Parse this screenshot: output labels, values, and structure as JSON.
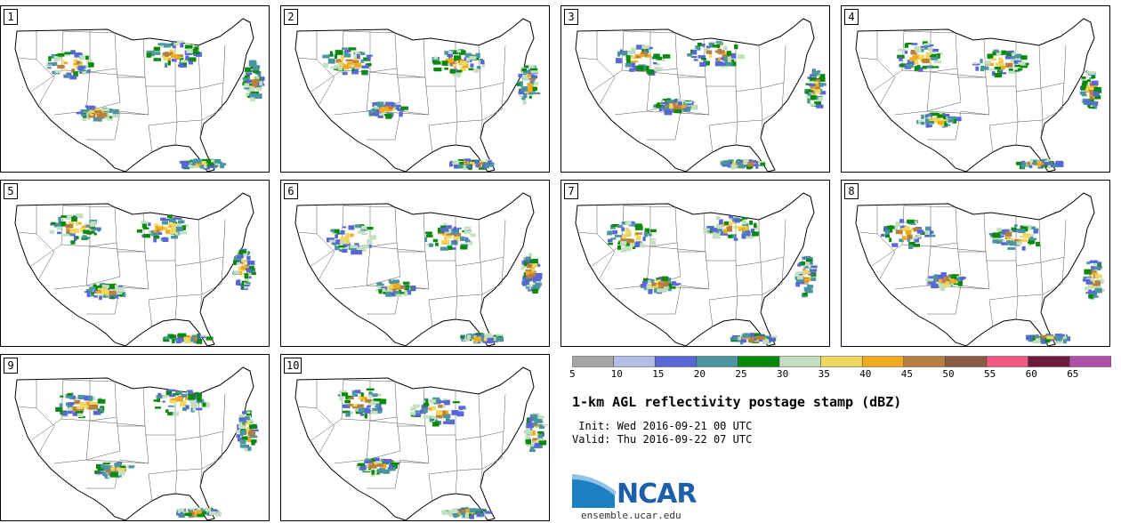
{
  "panels": [
    {
      "label": "1"
    },
    {
      "label": "2"
    },
    {
      "label": "3"
    },
    {
      "label": "4"
    },
    {
      "label": "5"
    },
    {
      "label": "6"
    },
    {
      "label": "7"
    },
    {
      "label": "8"
    },
    {
      "label": "9"
    },
    {
      "label": "10"
    }
  ],
  "colorbar": {
    "colors": [
      "#a6a6a6",
      "#b3bde6",
      "#5866d6",
      "#4a95a0",
      "#0a8a0a",
      "#c2e0c0",
      "#f0d860",
      "#f0ac20",
      "#b88040",
      "#8c5a40",
      "#f05a80",
      "#6e1a3c",
      "#b050a8"
    ],
    "labels": [
      "5",
      "10",
      "15",
      "20",
      "25",
      "30",
      "35",
      "40",
      "45",
      "50",
      "55",
      "60",
      "65"
    ]
  },
  "title": "1-km AGL reflectivity postage stamp (dBZ)",
  "init": " Init: Wed 2016-09-21 00 UTC",
  "valid": "Valid: Thu 2016-09-22 07 UTC",
  "logo": {
    "text": "NCAR",
    "site": "ensemble.ucar.edu"
  }
}
